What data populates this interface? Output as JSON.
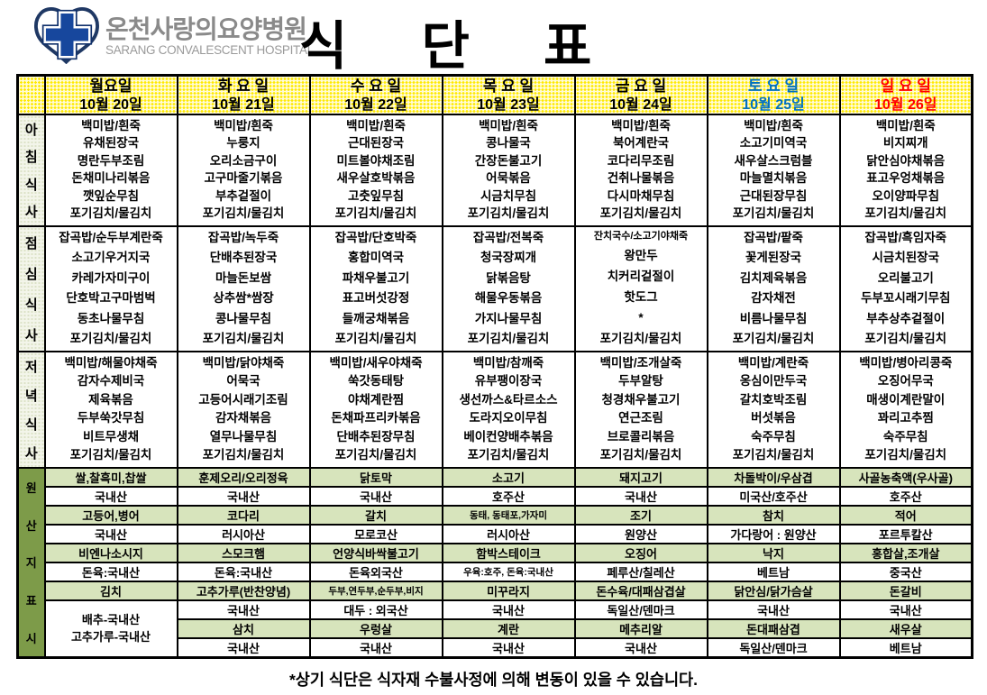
{
  "logo": {
    "hospital_name_ko": "온천사랑의요양병원",
    "hospital_name_en": "SARANG CONVALESCENT HOSPITAL"
  },
  "title": "식 단 표",
  "colors": {
    "header_yellow_dot": "#FFEA00",
    "saturday_blue": "#0070C0",
    "sunday_red": "#FF0000",
    "origin_green": "#D7E4BC",
    "origin_header_olive": "#7D9B49",
    "meal_header_bg": "#F3F5EA",
    "logo_navy": "#17479D",
    "logo_outline": "#10306B",
    "hospital_gray": "#8A8A8A"
  },
  "row_headers": {
    "breakfast": "아침식사",
    "lunch": "점심식사",
    "dinner": "저녁식사",
    "origin": "원산지표시"
  },
  "days": [
    {
      "label": "월요일",
      "date": "10월 20일",
      "color": "#000000",
      "breakfast": [
        "백미밥/흰죽",
        "유채된장국",
        "명란두부조림",
        "돈채미나리볶음",
        "깻잎순무침",
        "포기김치/물김치"
      ],
      "lunch": [
        "잡곡밥/순두부계란죽",
        "소고기우거지국",
        "카레가자미구이",
        "단호박고구마범벅",
        "동초나물무침",
        "포기김치/물김치"
      ],
      "dinner": [
        "백미밥/해물야채죽",
        "감자수제비국",
        "제육볶음",
        "두부쑥갓무침",
        "비트무생채",
        "포기김치/물김치"
      ],
      "origin": [
        "쌀,찰흑미,찹쌀",
        "국내산",
        "고등어,병어",
        "국내산",
        "비엔나소시지",
        "돈육:국내산",
        "김치",
        "배추-국내산|고추가루-국내산",
        null,
        null
      ]
    },
    {
      "label": "화 요 일",
      "date": "10월 21일",
      "color": "#000000",
      "breakfast": [
        "백미밥/흰죽",
        "누룽지",
        "오리소금구이",
        "고구마줄기볶음",
        "부추겉절이",
        "포기김치/물김치"
      ],
      "lunch": [
        "잡곡밥/녹두죽",
        "단배추된장국",
        "마늘돈보쌈",
        "상추쌈*쌈장",
        "콩나물무침",
        "포기김치/물김치"
      ],
      "dinner": [
        "백미밥/닭야채죽",
        "어묵국",
        "고등어시래기조림",
        "감자채볶음",
        "열무나물무침",
        "포기김치/물김치"
      ],
      "origin": [
        "훈제오리/오리정육",
        "국내산",
        "코다리",
        "러시아산",
        "스모크햄",
        "돈육:국내산",
        "고추가루(반찬양념)",
        "국내산",
        "삼치",
        "국내산"
      ]
    },
    {
      "label": "수 요 일",
      "date": "10월 22일",
      "color": "#000000",
      "breakfast": [
        "백미밥/흰죽",
        "근대된장국",
        "미트볼야채조림",
        "새우살호박볶음",
        "고춧잎무침",
        "포기김치/물김치"
      ],
      "lunch": [
        "잡곡밥/단호박죽",
        "홍합미역국",
        "파채우불고기",
        "표고버섯강정",
        "들깨궁채볶음",
        "포기김치/물김치"
      ],
      "dinner": [
        "백미밥/새우야채죽",
        "쑥갓동태탕",
        "야채계란찜",
        "돈채파프리카볶음",
        "단배추된장무침",
        "포기김치/물김치"
      ],
      "origin": [
        "닭토막",
        "국내산",
        "갈치",
        "모로코산",
        "언양식바싹불고기",
        "돈육외국산",
        "두부,연두부,순두부,비지",
        "대두 : 외국산",
        "우렁살",
        "국내산"
      ]
    },
    {
      "label": "목 요 일",
      "date": "10월 23일",
      "color": "#000000",
      "breakfast": [
        "백미밥/흰죽",
        "콩나물국",
        "간장돈불고기",
        "어묵볶음",
        "시금치무침",
        "포기김치/물김치"
      ],
      "lunch": [
        "잡곡밥/전복죽",
        "청국장찌개",
        "닭볶음탕",
        "해물우동볶음",
        "가지나물무침",
        "포기김치/물김치"
      ],
      "dinner": [
        "백미밥/참깨죽",
        "유부팽이장국",
        "생선까스&타르소스",
        "도라지오이무침",
        "베이컨양배추볶음",
        "포기김치/물김치"
      ],
      "origin": [
        "소고기",
        "호주산",
        "동태, 동태포,가자미",
        "러시아산",
        "함박스테이크",
        "우육:호주, 돈육:국내산",
        "미꾸라지",
        "국내산",
        "계란",
        "국내산"
      ]
    },
    {
      "label": "금 요 일",
      "date": "10월 24일",
      "color": "#000000",
      "breakfast": [
        "백미밥/흰죽",
        "북어계란국",
        "코다리무조림",
        "건취나물볶음",
        "다시마채무침",
        "포기김치/물김치"
      ],
      "lunch": [
        "잔치국수/소고기야채죽",
        "왕만두",
        "치커리겉절이",
        "핫도그",
        "*",
        "포기김치/물김치"
      ],
      "dinner": [
        "백미밥/조개살죽",
        "두부알탕",
        "청경채우불고기",
        "연근조림",
        "브로콜리볶음",
        "포기김치/물김치"
      ],
      "origin": [
        "돼지고기",
        "국내산",
        "조기",
        "원양산",
        "오징어",
        "페루산/칠레산",
        "돈수육/대패삼겹살",
        "독일산/덴마크",
        "메추리알",
        "국내산"
      ]
    },
    {
      "label": "토 요 일",
      "date": "10월 25일",
      "color": "#0070C0",
      "breakfast": [
        "백미밥/흰죽",
        "소고기미역국",
        "새우살스크럼블",
        "마늘멸치볶음",
        "근대된장무침",
        "포기김치/물김치"
      ],
      "lunch": [
        "잡곡밥/팥죽",
        "꽃게된장국",
        "김치제육볶음",
        "감자채전",
        "비름나물무침",
        "포기김치/물김치"
      ],
      "dinner": [
        "백미밥/계란죽",
        "옹심이만두국",
        "갈치호박조림",
        "버섯볶음",
        "숙주무침",
        "포기김치/물김치"
      ],
      "origin": [
        "차돌박이/우삼겹",
        "미국산/호주산",
        "참치",
        "가다랑어 : 원양산",
        "낙지",
        "베트남",
        "닭안심/닭가슴살",
        "국내산",
        "돈대패삼겹",
        "독일산/덴마크"
      ]
    },
    {
      "label": "일 요 일",
      "date": "10월 26일",
      "color": "#FF0000",
      "breakfast": [
        "백미밥/흰죽",
        "비지찌개",
        "닭안심야채볶음",
        "표고우엉채볶음",
        "오이양파무침",
        "포기김치/물김치"
      ],
      "lunch": [
        "잡곡밥/흑임자죽",
        "시금치된장국",
        "오리불고기",
        "두부꼬시래기무침",
        "부추상추겉절이",
        "포기김치/물김치"
      ],
      "dinner": [
        "백미밥/병아리콩죽",
        "오징어무국",
        "매생이계란말이",
        "꽈리고추찜",
        "숙주무침",
        "포기김치/물김치"
      ],
      "origin": [
        "사골농축액(우사골)",
        "호주산",
        "적어",
        "포르투칼산",
        "홍합살,조개살",
        "중국산",
        "돈갈비",
        "국내산",
        "새우살",
        "베트남"
      ]
    }
  ],
  "footer": "*상기 식단은 식자재 수불사정에 의해 변동이 있을 수 있습니다."
}
